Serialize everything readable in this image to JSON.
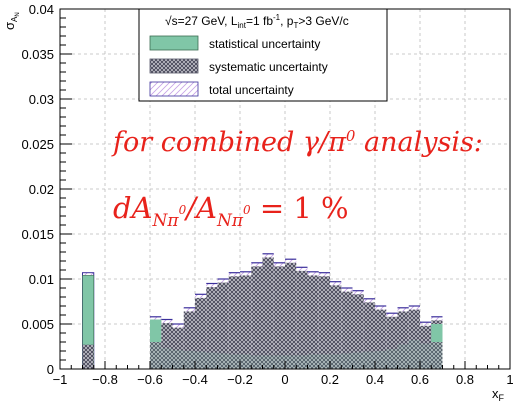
{
  "chart_data": {
    "type": "bar",
    "xlabel": "x",
    "xlabel_sub": "F",
    "ylabel": "σ",
    "ylabel_sub": "A",
    "ylabel_subsub": "N",
    "xlim": [
      -1,
      1
    ],
    "ylim": [
      0,
      0.04
    ],
    "x_tick_labels": [
      "−1",
      "−0.8",
      "−0.6",
      "−0.4",
      "−0.2",
      "0",
      "0.2",
      "0.4",
      "0.6",
      "0.8",
      "1"
    ],
    "x_tick_values": [
      -1,
      -0.8,
      -0.6,
      -0.4,
      -0.2,
      0,
      0.2,
      0.4,
      0.6,
      0.8,
      1
    ],
    "y_tick_labels": [
      "0",
      "0.005",
      "0.01",
      "0.015",
      "0.02",
      "0.025",
      "0.03",
      "0.035",
      "0.04"
    ],
    "y_tick_values": [
      0,
      0.005,
      0.01,
      0.015,
      0.02,
      0.025,
      0.03,
      0.035,
      0.04
    ],
    "grid": true,
    "bin_edges": [
      -0.9,
      -0.85,
      -0.65,
      -0.6,
      -0.55,
      -0.5,
      -0.45,
      -0.4,
      -0.35,
      -0.3,
      -0.25,
      -0.2,
      -0.15,
      -0.1,
      -0.05,
      0,
      0.05,
      0.1,
      0.15,
      0.2,
      0.25,
      0.3,
      0.35,
      0.4,
      0.45,
      0.5,
      0.55,
      0.6,
      0.65,
      0.7
    ],
    "bins": [
      {
        "x0": -0.9,
        "x1": -0.85,
        "stat": 0.0027,
        "total": 0.0107
      },
      {
        "x0": -0.6,
        "x1": -0.55,
        "stat": 0.003,
        "total": 0.0058
      },
      {
        "x0": -0.55,
        "x1": -0.5,
        "stat": 0.0023,
        "total": 0.0055
      },
      {
        "x0": -0.5,
        "x1": -0.45,
        "stat": 0.0021,
        "total": 0.005
      },
      {
        "x0": -0.45,
        "x1": -0.4,
        "stat": 0.002,
        "total": 0.0068
      },
      {
        "x0": -0.4,
        "x1": -0.35,
        "stat": 0.0019,
        "total": 0.0083
      },
      {
        "x0": -0.35,
        "x1": -0.3,
        "stat": 0.0018,
        "total": 0.0095
      },
      {
        "x0": -0.3,
        "x1": -0.25,
        "stat": 0.0017,
        "total": 0.01
      },
      {
        "x0": -0.25,
        "x1": -0.2,
        "stat": 0.0016,
        "total": 0.0107
      },
      {
        "x0": -0.2,
        "x1": -0.15,
        "stat": 0.0016,
        "total": 0.0108
      },
      {
        "x0": -0.15,
        "x1": -0.1,
        "stat": 0.0015,
        "total": 0.0118
      },
      {
        "x0": -0.1,
        "x1": -0.05,
        "stat": 0.0015,
        "total": 0.0128
      },
      {
        "x0": -0.05,
        "x1": 0.0,
        "stat": 0.0015,
        "total": 0.0118
      },
      {
        "x0": 0.0,
        "x1": 0.05,
        "stat": 0.0015,
        "total": 0.0122
      },
      {
        "x0": 0.05,
        "x1": 0.1,
        "stat": 0.0015,
        "total": 0.0113
      },
      {
        "x0": 0.1,
        "x1": 0.15,
        "stat": 0.0016,
        "total": 0.0108
      },
      {
        "x0": 0.15,
        "x1": 0.2,
        "stat": 0.0016,
        "total": 0.0107
      },
      {
        "x0": 0.2,
        "x1": 0.25,
        "stat": 0.0016,
        "total": 0.0097
      },
      {
        "x0": 0.25,
        "x1": 0.3,
        "stat": 0.0017,
        "total": 0.009
      },
      {
        "x0": 0.3,
        "x1": 0.35,
        "stat": 0.0018,
        "total": 0.0087
      },
      {
        "x0": 0.35,
        "x1": 0.4,
        "stat": 0.0019,
        "total": 0.0078
      },
      {
        "x0": 0.4,
        "x1": 0.45,
        "stat": 0.002,
        "total": 0.007
      },
      {
        "x0": 0.45,
        "x1": 0.5,
        "stat": 0.0022,
        "total": 0.0062
      },
      {
        "x0": 0.5,
        "x1": 0.55,
        "stat": 0.0027,
        "total": 0.0068
      },
      {
        "x0": 0.55,
        "x1": 0.6,
        "stat": 0.0032,
        "total": 0.007
      },
      {
        "x0": 0.6,
        "x1": 0.65,
        "stat": 0.0028,
        "total": 0.0052
      },
      {
        "x0": 0.65,
        "x1": 0.7,
        "stat": 0.003,
        "total": 0.0058
      }
    ],
    "single_bins": [
      {
        "x0": -0.9,
        "x1": -0.85,
        "stat_top": 0.0107,
        "syst": 0.0027,
        "total": 0.0108
      },
      {
        "x0": 0.6,
        "x1": 0.7,
        "stat_top": 0.0058,
        "syst": 0.0028,
        "total": 0.006
      }
    ],
    "legend": {
      "header_sqrt": "√s=27 GeV, L",
      "header_int_sub": "int",
      "header_mid": "=1 fb",
      "header_sup": "-1",
      "header_pt": ", p",
      "header_pt_sub": "T",
      "header_end": ">3 GeV/c",
      "entries": [
        {
          "label": "statistical uncertainty"
        },
        {
          "label": "systematic uncertainty"
        },
        {
          "label": "total uncertainty"
        }
      ],
      "placement": "top-center"
    },
    "annotation_line1": "for combined γ/π",
    "annotation_line1_sup": "0",
    "annotation_line1_end": " analysis:",
    "annotation_line2_a": "dA",
    "annotation_line2_sub1": "Nπ",
    "annotation_line2_sup1": "0",
    "annotation_line2_b": "/A",
    "annotation_line2_sub2": "Nπ",
    "annotation_line2_sup2": "0",
    "annotation_line2_c": " = 1 %",
    "colors": {
      "stat": "#80c6a7",
      "syst_fill": "#555566",
      "total_line": "#3b2f9b",
      "total_hatch": "#b88fd9",
      "annotation": "#e8221b"
    }
  }
}
